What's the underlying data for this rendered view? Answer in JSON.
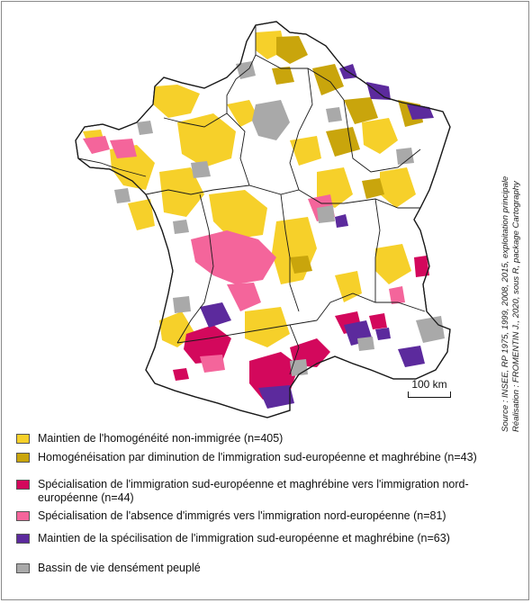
{
  "source": {
    "line1": "Source : INSEE, RP 1975, 1999, 2008, 2015, exploitation principale",
    "line2": "Réalisation : FROMENTIN J., 2020, sous R, package Cartography"
  },
  "scale": {
    "label": "100 km"
  },
  "legend": {
    "items": [
      {
        "label": "Maintien de l'homogénéité non-immigrée (n=405)",
        "color": "#f6d02a"
      },
      {
        "label": "Homogénéisation par diminution de l'immigration sud-européenne et maghrébine (n=43)",
        "color": "#c9a50c"
      },
      {
        "label": "Spécialisation de l'immigration sud-européenne et maghrébine vers l'immigration nord-européenne (n=44)",
        "color": "#d3085c"
      },
      {
        "label": "Spécialisation de l'absence d'immigrés vers l'immigration nord-européenne (n=81)",
        "color": "#f4659b"
      },
      {
        "label": "Maintien de la spécilisation de l'immigration sud-européenne et maghrébine (n=63)",
        "color": "#5c2a9d"
      },
      {
        "label": "Bassin de vie densément peuplé",
        "color": "#a9a9a9"
      }
    ]
  },
  "colors": {
    "white": "#ffffff",
    "border": "#1a1a1a"
  }
}
